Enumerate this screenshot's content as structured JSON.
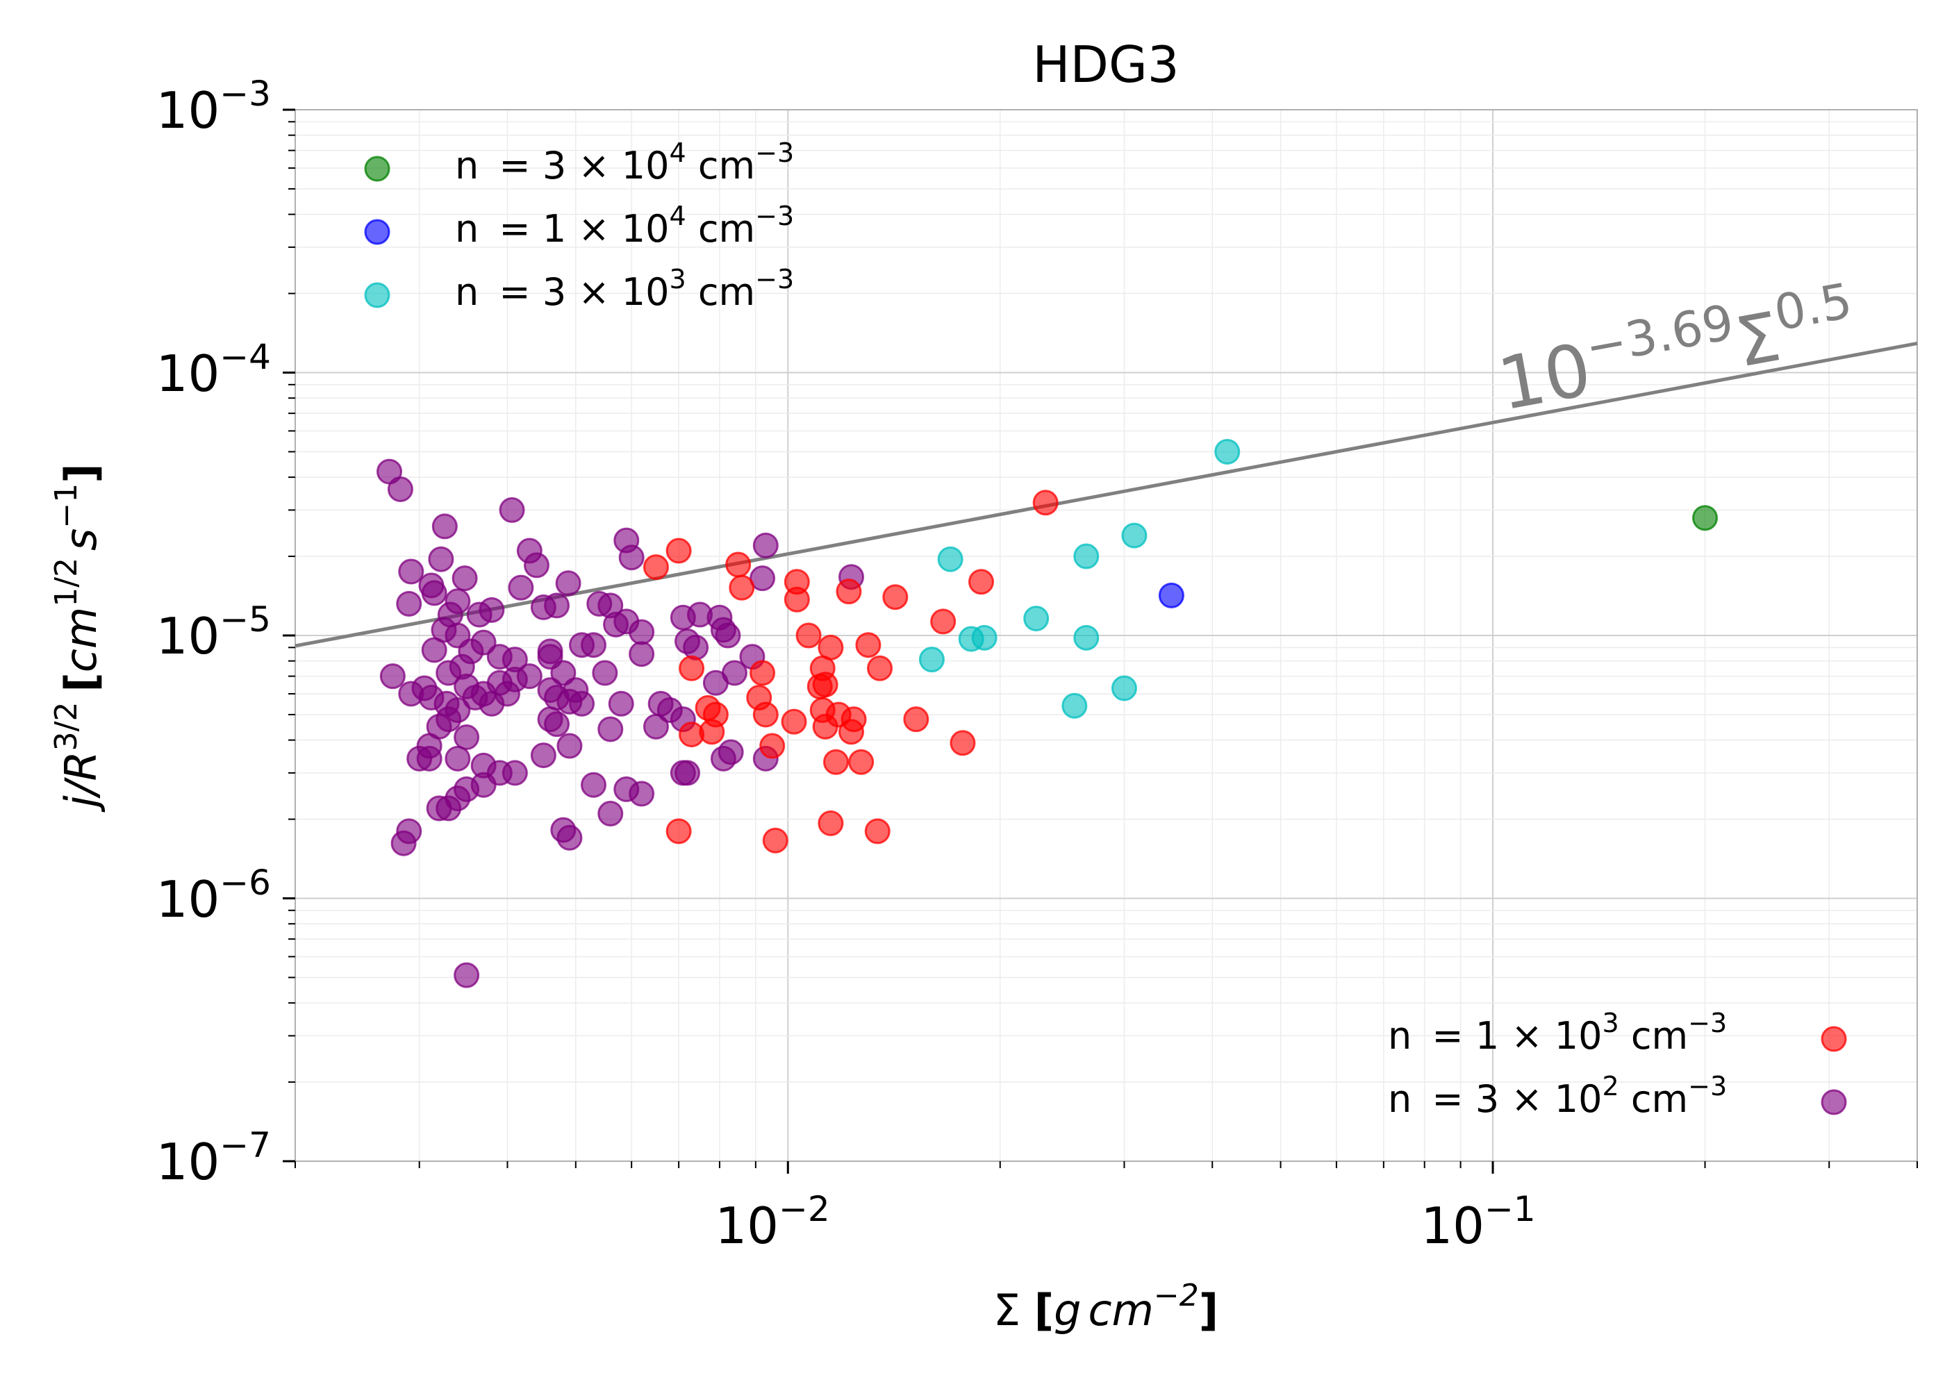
{
  "chart_data": {
    "type": "scatter",
    "title": "HDG3",
    "xscale": "log",
    "yscale": "log",
    "xlim": [
      0.002,
      0.4
    ],
    "ylim": [
      1e-07,
      0.001
    ],
    "grid": true,
    "xlabel": {
      "prefix": "Σ ",
      "bracket_open": "[",
      "var1": "g",
      "var2": "cm",
      "exp": "−2",
      "bracket_close": "]"
    },
    "ylabel": {
      "var1": "j",
      "slash": "/",
      "var2": "R",
      "exp1": "3/2",
      "bracket_open": "[",
      "var3": "cm",
      "exp2": "1/2",
      "var4": "s",
      "exp3": "−1",
      "bracket_close": "]"
    },
    "x_ticks": [
      {
        "base": "10",
        "exp": "−2",
        "value": 0.01
      },
      {
        "base": "10",
        "exp": "−1",
        "value": 0.1
      }
    ],
    "y_ticks": [
      {
        "base": "10",
        "exp": "−3",
        "value": 0.001
      },
      {
        "base": "10",
        "exp": "−4",
        "value": 0.0001
      },
      {
        "base": "10",
        "exp": "−5",
        "value": 1e-05
      },
      {
        "base": "10",
        "exp": "−6",
        "value": 1e-06
      },
      {
        "base": "10",
        "exp": "−7",
        "value": 1e-07
      }
    ],
    "fit_line": {
      "label_base": "10",
      "label_exp": "−3.69",
      "label_var": "Σ",
      "label_var_exp": "0.5",
      "log_intercept": -3.69,
      "slope": 0.5,
      "color": "#808080"
    },
    "legends": [
      {
        "position": "upper-left",
        "entries": [
          {
            "n": "n ",
            "eq": "= ",
            "mant": "3",
            "times": " × ",
            "base": "10",
            "exp": "4",
            "unit": " cm",
            "uexp": "−3",
            "color": "#008000"
          },
          {
            "n": "n ",
            "eq": "= ",
            "mant": "1",
            "times": " × ",
            "base": "10",
            "exp": "4",
            "unit": " cm",
            "uexp": "−3",
            "color": "#0000ff"
          },
          {
            "n": "n ",
            "eq": "= ",
            "mant": "3",
            "times": " × ",
            "base": "10",
            "exp": "3",
            "unit": " cm",
            "uexp": "−3",
            "color": "#00bfbf"
          }
        ]
      },
      {
        "position": "lower-right",
        "entries": [
          {
            "n": "n ",
            "eq": "= ",
            "mant": "1",
            "times": " × ",
            "base": "10",
            "exp": "3",
            "unit": " cm",
            "uexp": "−3",
            "color": "#ff0000"
          },
          {
            "n": "n ",
            "eq": "= ",
            "mant": "3",
            "times": " × ",
            "base": "10",
            "exp": "2",
            "unit": " cm",
            "uexp": "−3",
            "color": "#800080"
          }
        ]
      }
    ],
    "series": [
      {
        "name": "n = 3 × 10^4 cm^-3",
        "color": "#008000",
        "points": [
          [
            0.2,
            2.8e-05
          ]
        ]
      },
      {
        "name": "n = 1 × 10^4 cm^-3",
        "color": "#0000ff",
        "points": [
          [
            0.035,
            1.42e-05
          ]
        ]
      },
      {
        "name": "n = 3 × 10^3 cm^-3",
        "color": "#00bfbf",
        "points": [
          [
            0.042,
            5e-05
          ],
          [
            0.031,
            2.4e-05
          ],
          [
            0.0265,
            2e-05
          ],
          [
            0.017,
            1.95e-05
          ],
          [
            0.0225,
            1.16e-05
          ],
          [
            0.0265,
            9.8e-06
          ],
          [
            0.019,
            9.8e-06
          ],
          [
            0.0182,
            9.7e-06
          ],
          [
            0.016,
            8.1e-06
          ],
          [
            0.03,
            6.3e-06
          ],
          [
            0.0255,
            5.4e-06
          ]
        ]
      },
      {
        "name": "n = 1 × 10^3 cm^-3",
        "color": "#ff0000",
        "points": [
          [
            0.0232,
            3.2e-05
          ],
          [
            0.007,
            2.1e-05
          ],
          [
            0.0065,
            1.82e-05
          ],
          [
            0.0085,
            1.86e-05
          ],
          [
            0.0086,
            1.52e-05
          ],
          [
            0.0103,
            1.6e-05
          ],
          [
            0.0103,
            1.37e-05
          ],
          [
            0.0122,
            1.47e-05
          ],
          [
            0.0142,
            1.4e-05
          ],
          [
            0.0188,
            1.6e-05
          ],
          [
            0.0166,
            1.13e-05
          ],
          [
            0.0107,
            1e-05
          ],
          [
            0.0115,
            9e-06
          ],
          [
            0.013,
            9.2e-06
          ],
          [
            0.0135,
            7.5e-06
          ],
          [
            0.0112,
            7.5e-06
          ],
          [
            0.0092,
            7.2e-06
          ],
          [
            0.0073,
            7.5e-06
          ],
          [
            0.0113,
            6.5e-06
          ],
          [
            0.0111,
            6.4e-06
          ],
          [
            0.0091,
            5.8e-06
          ],
          [
            0.0077,
            5.3e-06
          ],
          [
            0.0079,
            5e-06
          ],
          [
            0.0112,
            5.2e-06
          ],
          [
            0.0118,
            5e-06
          ],
          [
            0.0093,
            5e-06
          ],
          [
            0.0124,
            4.8e-06
          ],
          [
            0.0102,
            4.7e-06
          ],
          [
            0.0113,
            4.5e-06
          ],
          [
            0.0152,
            4.8e-06
          ],
          [
            0.0123,
            4.3e-06
          ],
          [
            0.0073,
            4.2e-06
          ],
          [
            0.0078,
            4.3e-06
          ],
          [
            0.0095,
            3.8e-06
          ],
          [
            0.0177,
            3.9e-06
          ],
          [
            0.0117,
            3.3e-06
          ],
          [
            0.0127,
            3.3e-06
          ],
          [
            0.007,
            1.8e-06
          ],
          [
            0.0096,
            1.66e-06
          ],
          [
            0.0115,
            1.93e-06
          ],
          [
            0.0134,
            1.8e-06
          ]
        ]
      },
      {
        "name": "n = 3 × 10^2 cm^-3",
        "color": "#800080",
        "points": [
          [
            0.00272,
            4.2e-05
          ],
          [
            0.00282,
            3.6e-05
          ],
          [
            0.00406,
            3e-05
          ],
          [
            0.00326,
            2.6e-05
          ],
          [
            0.0043,
            2.1e-05
          ],
          [
            0.00322,
            1.95e-05
          ],
          [
            0.0044,
            1.85e-05
          ],
          [
            0.00292,
            1.75e-05
          ],
          [
            0.00348,
            1.65e-05
          ],
          [
            0.00312,
            1.55e-05
          ],
          [
            0.00418,
            1.52e-05
          ],
          [
            0.00488,
            1.58e-05
          ],
          [
            0.00315,
            1.45e-05
          ],
          [
            0.0029,
            1.32e-05
          ],
          [
            0.0034,
            1.35e-05
          ],
          [
            0.00332,
            1.2e-05
          ],
          [
            0.00365,
            1.2e-05
          ],
          [
            0.0038,
            1.25e-05
          ],
          [
            0.0045,
            1.28e-05
          ],
          [
            0.0047,
            1.3e-05
          ],
          [
            0.0054,
            1.32e-05
          ],
          [
            0.0056,
            1.3e-05
          ],
          [
            0.0059,
            1.13e-05
          ],
          [
            0.0062,
            1.03e-05
          ],
          [
            0.0071,
            1.17e-05
          ],
          [
            0.008,
            1.17e-05
          ],
          [
            0.0081,
            1.05e-05
          ],
          [
            0.00822,
            1e-05
          ],
          [
            0.0075,
            1.2e-05
          ],
          [
            0.0057,
            1.1e-05
          ],
          [
            0.0059,
            2.3e-05
          ],
          [
            0.006,
            1.98e-05
          ],
          [
            0.0093,
            2.2e-05
          ],
          [
            0.0092,
            1.65e-05
          ],
          [
            0.0123,
            1.67e-05
          ],
          [
            0.00325,
            1.05e-05
          ],
          [
            0.0034,
            1e-05
          ],
          [
            0.00315,
            8.8e-06
          ],
          [
            0.00355,
            8.7e-06
          ],
          [
            0.0037,
            9.4e-06
          ],
          [
            0.0039,
            8.3e-06
          ],
          [
            0.0041,
            8.1e-06
          ],
          [
            0.0046,
            8.7e-06
          ],
          [
            0.0046,
            8.3e-06
          ],
          [
            0.0051,
            9.2e-06
          ],
          [
            0.0053,
            9.2e-06
          ],
          [
            0.0062,
            8.5e-06
          ],
          [
            0.0072,
            9.5e-06
          ],
          [
            0.0074,
            9e-06
          ],
          [
            0.0089,
            8.3e-06
          ],
          [
            0.0084,
            7.2e-06
          ],
          [
            0.0079,
            6.6e-06
          ],
          [
            0.0055,
            7.2e-06
          ],
          [
            0.0048,
            7.2e-06
          ],
          [
            0.0043,
            7e-06
          ],
          [
            0.0041,
            6.8e-06
          ],
          [
            0.0039,
            6.6e-06
          ],
          [
            0.0037,
            6e-06
          ],
          [
            0.0035,
            6.4e-06
          ],
          [
            0.00345,
            7.6e-06
          ],
          [
            0.0033,
            7.2e-06
          ],
          [
            0.00275,
            7e-06
          ],
          [
            0.00292,
            6e-06
          ],
          [
            0.00305,
            6.3e-06
          ],
          [
            0.00312,
            5.8e-06
          ],
          [
            0.00328,
            5.5e-06
          ],
          [
            0.0034,
            5.2e-06
          ],
          [
            0.0036,
            5.8e-06
          ],
          [
            0.0038,
            5.5e-06
          ],
          [
            0.004,
            6e-06
          ],
          [
            0.0046,
            6.2e-06
          ],
          [
            0.005,
            6.2e-06
          ],
          [
            0.0049,
            5.6e-06
          ],
          [
            0.0047,
            5.8e-06
          ],
          [
            0.0051,
            5.5e-06
          ],
          [
            0.0058,
            5.5e-06
          ],
          [
            0.0066,
            5.5e-06
          ],
          [
            0.0068,
            5.2e-06
          ],
          [
            0.0071,
            4.8e-06
          ],
          [
            0.0065,
            4.5e-06
          ],
          [
            0.0056,
            4.4e-06
          ],
          [
            0.0047,
            4.6e-06
          ],
          [
            0.0046,
            4.8e-06
          ],
          [
            0.0033,
            4.8e-06
          ],
          [
            0.0032,
            4.5e-06
          ],
          [
            0.0035,
            4.1e-06
          ],
          [
            0.0031,
            3.8e-06
          ],
          [
            0.003,
            3.4e-06
          ],
          [
            0.0031,
            3.4e-06
          ],
          [
            0.0034,
            3.4e-06
          ],
          [
            0.0037,
            3.2e-06
          ],
          [
            0.0039,
            3e-06
          ],
          [
            0.0041,
            3e-06
          ],
          [
            0.0045,
            3.5e-06
          ],
          [
            0.0049,
            3.8e-06
          ],
          [
            0.0059,
            2.6e-06
          ],
          [
            0.0053,
            2.7e-06
          ],
          [
            0.0062,
            2.5e-06
          ],
          [
            0.0071,
            3e-06
          ],
          [
            0.0072,
            3e-06
          ],
          [
            0.0081,
            3.4e-06
          ],
          [
            0.0083,
            3.6e-06
          ],
          [
            0.0093,
            3.4e-06
          ],
          [
            0.0035,
            2.6e-06
          ],
          [
            0.0037,
            2.7e-06
          ],
          [
            0.0033,
            2.2e-06
          ],
          [
            0.0032,
            2.2e-06
          ],
          [
            0.0034,
            2.4e-06
          ],
          [
            0.0048,
            1.82e-06
          ],
          [
            0.0049,
            1.7e-06
          ],
          [
            0.0056,
            2.1e-06
          ],
          [
            0.0029,
            1.8e-06
          ],
          [
            0.00285,
            1.62e-06
          ],
          [
            0.0035,
            5.1e-07
          ]
        ]
      }
    ]
  }
}
